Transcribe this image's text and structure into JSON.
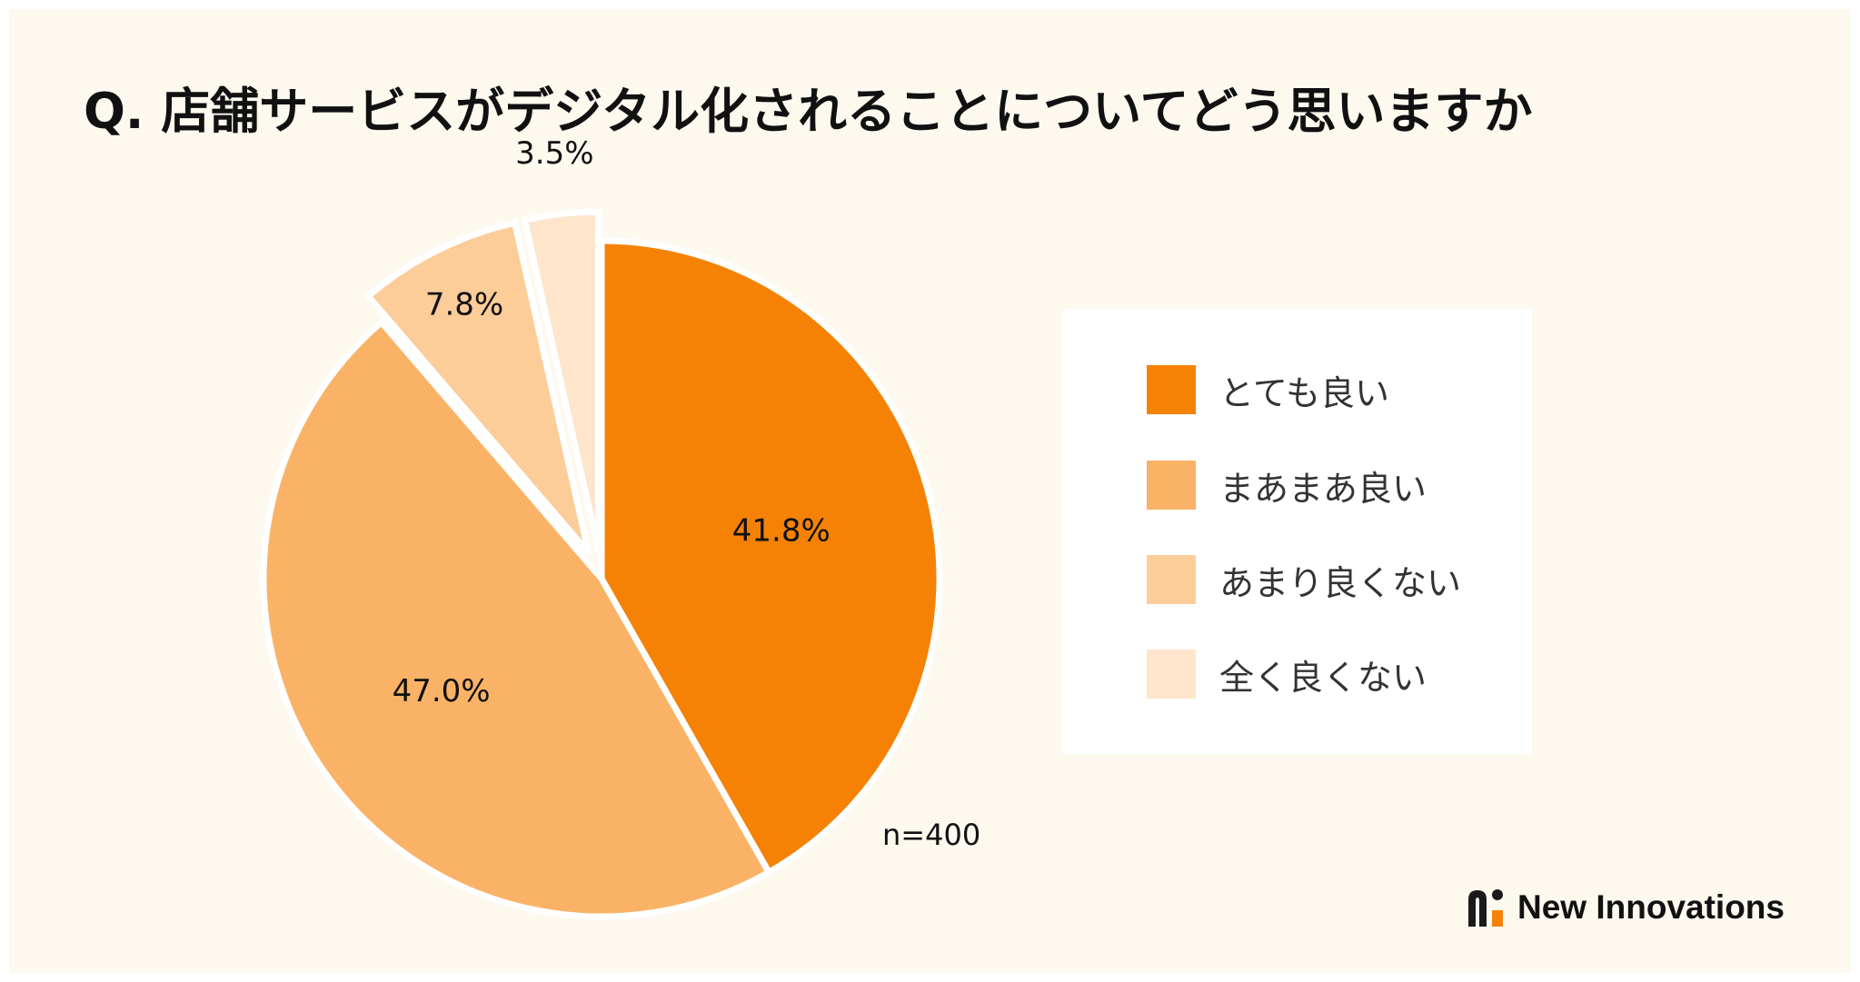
{
  "chart_data": {
    "type": "pie",
    "title": "Q. 店舗サービスがデジタル化されることについてどう思いますか",
    "categories": [
      "とても良い",
      "まあまあ良い",
      "あまり良くない",
      "全く良くない"
    ],
    "values": [
      41.8,
      47.0,
      7.8,
      3.5
    ],
    "value_labels": [
      "41.8%",
      "47.0%",
      "7.8%",
      "3.5%"
    ],
    "colors": [
      "#f58205",
      "#fab366",
      "#fccc99",
      "#fee5cb"
    ],
    "exploded": [
      false,
      false,
      true,
      true
    ],
    "legend_position": "right",
    "sample_size": "n=400"
  },
  "brand": {
    "name": "New Innovations",
    "colors": {
      "dark": "#1a1a1a",
      "accent": "#f58205"
    }
  }
}
